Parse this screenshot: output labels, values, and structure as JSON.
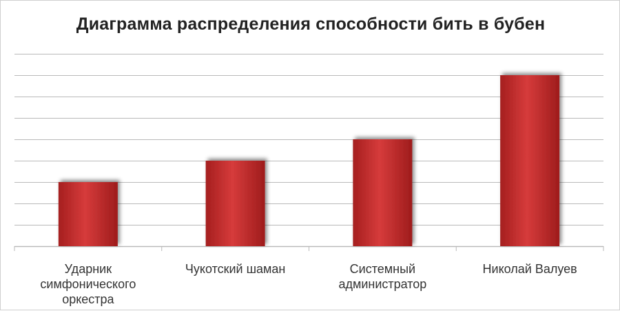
{
  "chart_data": {
    "type": "bar",
    "title": "Диаграмма распределения способности бить в бубен",
    "categories": [
      "Ударник\nсимфонического\nоркестра",
      "Чукотский шаман",
      "Системный\nадминистратор",
      "Николай Валуев"
    ],
    "values": [
      3,
      4,
      5,
      8
    ],
    "ylim": [
      0,
      9
    ],
    "grid": true,
    "legend": "none",
    "bar_color": "#c62f2f",
    "grid_color": "#b9b9b9"
  }
}
